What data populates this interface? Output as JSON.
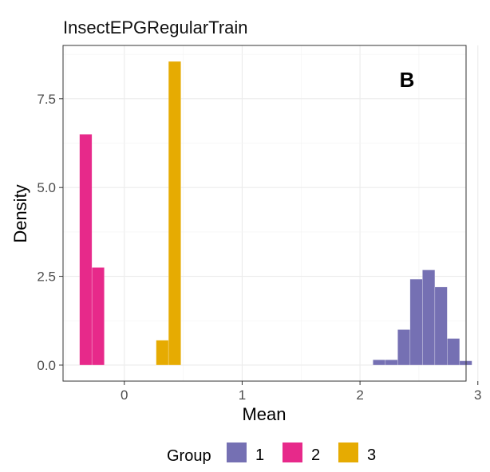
{
  "chart_data": {
    "type": "histogram",
    "title": "InsectEPGRegularTrain",
    "annotation": "B",
    "xlabel": "Mean",
    "ylabel": "Density",
    "xlim": [
      -0.52,
      2.9
    ],
    "ylim": [
      -0.45,
      9.0
    ],
    "x_ticks": [
      0,
      1,
      2,
      3
    ],
    "x_tick_labels": [
      "0",
      "1",
      "2",
      "3"
    ],
    "y_ticks": [
      0,
      2.5,
      5,
      7.5
    ],
    "y_tick_labels": [
      "0.0",
      "2.5",
      "5.0",
      "7.5"
    ],
    "grid": true,
    "bin_width": 0.105,
    "legend": {
      "title": "Group",
      "position": "bottom",
      "entries": [
        "1",
        "2",
        "3"
      ]
    },
    "series": [
      {
        "name": "1",
        "color": "#7570b3",
        "bins": [
          {
            "x0": 2.11,
            "density": 0.15
          },
          {
            "x0": 2.215,
            "density": 0.15
          },
          {
            "x0": 2.32,
            "density": 1.0
          },
          {
            "x0": 2.425,
            "density": 2.42
          },
          {
            "x0": 2.53,
            "density": 2.68
          },
          {
            "x0": 2.635,
            "density": 2.2
          },
          {
            "x0": 2.74,
            "density": 0.75
          },
          {
            "x0": 2.845,
            "density": 0.12
          }
        ]
      },
      {
        "name": "2",
        "color": "#e7298a",
        "bins": [
          {
            "x0": -0.38,
            "density": 6.5
          },
          {
            "x0": -0.275,
            "density": 2.75
          }
        ]
      },
      {
        "name": "3",
        "color": "#e6ab02",
        "bins": [
          {
            "x0": 0.27,
            "density": 0.7
          },
          {
            "x0": 0.375,
            "density": 8.55
          }
        ]
      }
    ]
  }
}
